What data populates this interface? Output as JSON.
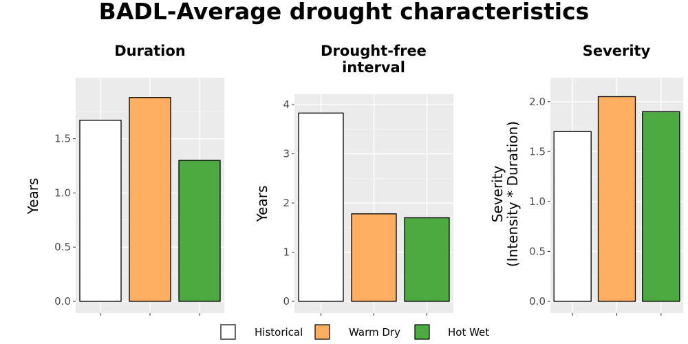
{
  "title": "BADL-Average drought characteristics",
  "legend": {
    "position": "bottom",
    "entries": [
      {
        "label": "Historical",
        "color": "#ffffff"
      },
      {
        "label": "Warm Dry",
        "color": "#fdae61"
      },
      {
        "label": "Hot Wet",
        "color": "#4daa40"
      }
    ]
  },
  "chart_data": [
    {
      "type": "bar",
      "title_lines": [
        "Duration"
      ],
      "ylabel_lines": [
        "Years"
      ],
      "categories": [
        "Historical",
        "Warm Dry",
        "Hot Wet"
      ],
      "values": [
        1.67,
        1.88,
        1.3
      ],
      "colors": [
        "#ffffff",
        "#fdae61",
        "#4daa40"
      ],
      "ylim": [
        0,
        1.98
      ],
      "yticks": [
        0,
        0.5,
        1.0,
        1.5
      ],
      "ytick_labels": [
        "0.0",
        "0.5",
        "1.0",
        "1.5"
      ],
      "grid": true
    },
    {
      "type": "bar",
      "title_lines": [
        "Drought-free",
        "interval"
      ],
      "ylabel_lines": [
        "Years"
      ],
      "categories": [
        "Historical",
        "Warm Dry",
        "Hot Wet"
      ],
      "values": [
        3.83,
        1.78,
        1.7
      ],
      "colors": [
        "#ffffff",
        "#fdae61",
        "#4daa40"
      ],
      "ylim": [
        0,
        4.03
      ],
      "yticks": [
        0,
        1,
        2,
        3,
        4
      ],
      "ytick_labels": [
        "0",
        "1",
        "2",
        "3",
        "4"
      ],
      "grid": true
    },
    {
      "type": "bar",
      "title_lines": [
        "Severity"
      ],
      "ylabel_lines": [
        "Severity",
        "(Intensity * Duration)"
      ],
      "categories": [
        "Historical",
        "Warm Dry",
        "Hot Wet"
      ],
      "values": [
        1.7,
        2.05,
        1.9
      ],
      "colors": [
        "#ffffff",
        "#fdae61",
        "#4daa40"
      ],
      "ylim": [
        0,
        2.15
      ],
      "yticks": [
        0,
        0.5,
        1.0,
        1.5,
        2.0
      ],
      "ytick_labels": [
        "0.0",
        "0.5",
        "1.0",
        "1.5",
        "2.0"
      ],
      "grid": true
    }
  ]
}
